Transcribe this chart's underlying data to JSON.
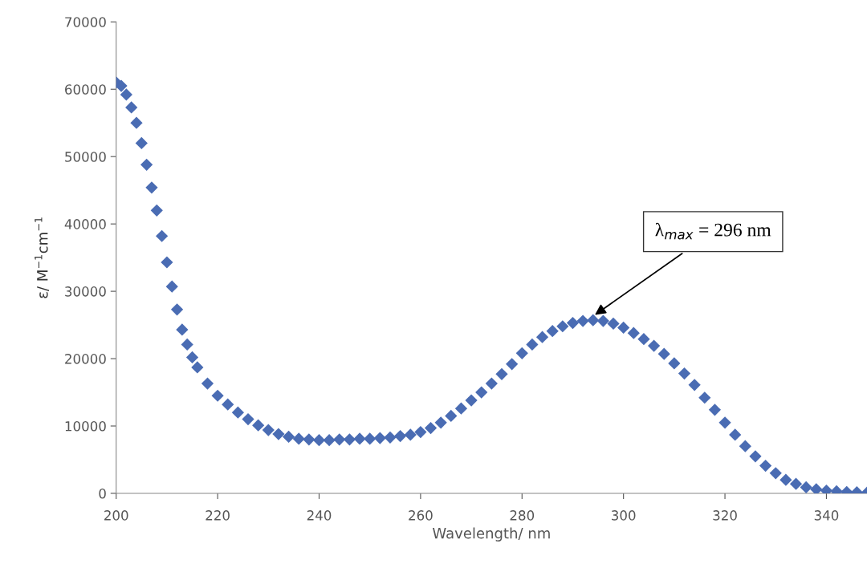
{
  "chart_data": {
    "type": "scatter",
    "xlabel": "Wavelength/ nm",
    "ylabel": "ε/ M$^{−1}$cm$^{−1}$",
    "x": [
      200,
      201,
      202,
      203,
      204,
      205,
      206,
      207,
      208,
      209,
      210,
      211,
      212,
      213,
      214,
      215,
      216,
      218,
      220,
      222,
      224,
      226,
      228,
      230,
      232,
      234,
      236,
      238,
      240,
      242,
      244,
      246,
      248,
      250,
      252,
      254,
      256,
      258,
      260,
      262,
      264,
      266,
      268,
      270,
      272,
      274,
      276,
      278,
      280,
      282,
      284,
      286,
      288,
      290,
      292,
      294,
      296,
      298,
      300,
      302,
      304,
      306,
      308,
      310,
      312,
      314,
      316,
      318,
      320,
      322,
      324,
      326,
      328,
      330,
      332,
      334,
      336,
      338,
      340,
      342,
      344,
      346,
      348
    ],
    "values": [
      61000,
      60500,
      59200,
      57300,
      55000,
      52000,
      48800,
      45400,
      42000,
      38200,
      34300,
      30700,
      27300,
      24300,
      22100,
      20200,
      18700,
      16300,
      14500,
      13200,
      12000,
      11000,
      10100,
      9400,
      8800,
      8400,
      8100,
      8000,
      7900,
      7900,
      8000,
      8000,
      8100,
      8100,
      8200,
      8300,
      8500,
      8700,
      9100,
      9700,
      10500,
      11500,
      12600,
      13800,
      15000,
      16300,
      17700,
      19200,
      20800,
      22100,
      23200,
      24100,
      24800,
      25300,
      25600,
      25700,
      25600,
      25200,
      24600,
      23800,
      22900,
      21900,
      20700,
      19300,
      17800,
      16100,
      14200,
      12400,
      10500,
      8700,
      7000,
      5500,
      4100,
      3000,
      2000,
      1400,
      900,
      600,
      400,
      300,
      200,
      150,
      100
    ],
    "color": "#4a6cb3",
    "marker": "diamond",
    "xlim": [
      200,
      348
    ],
    "xticks": [
      200,
      220,
      240,
      260,
      280,
      300,
      320,
      340
    ],
    "ylim": [
      0,
      70000
    ],
    "yticks": [
      0,
      10000,
      20000,
      30000,
      40000,
      50000,
      60000,
      70000
    ],
    "grid": false,
    "legend": false,
    "annotations": [
      {
        "text": "λ$_{max}$ = 296 nm",
        "x": 294,
        "y": 26300
      }
    ]
  }
}
